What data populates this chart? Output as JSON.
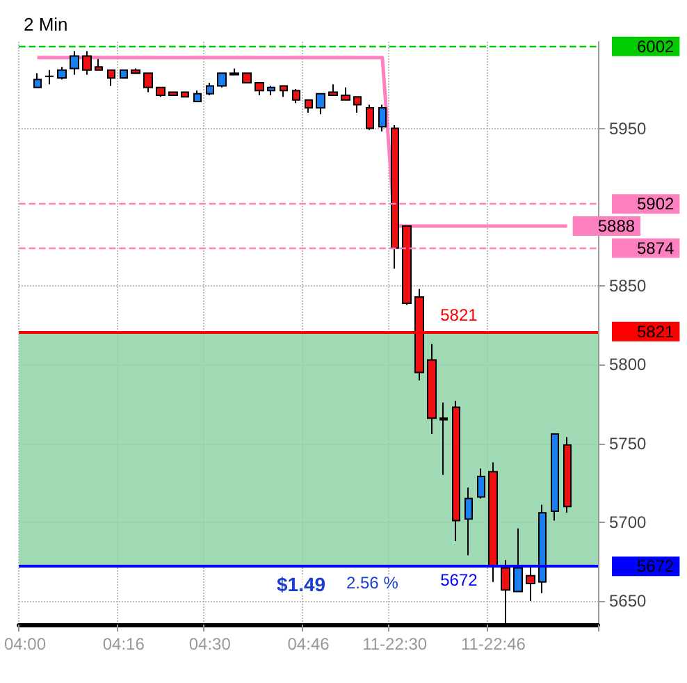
{
  "chart_data": {
    "type": "candlestick",
    "title": "2 Min",
    "categories": [
      "04:00",
      null,
      null,
      null,
      null,
      null,
      null,
      null,
      "04:16",
      null,
      null,
      null,
      null,
      null,
      null,
      "04:30",
      null,
      null,
      null,
      null,
      null,
      null,
      null,
      "04:46",
      null,
      null,
      null,
      null,
      null,
      null,
      "11-22:30",
      null,
      null,
      null,
      null,
      null,
      null,
      null,
      "11-22:46",
      null,
      null,
      null,
      null,
      null,
      null,
      null,
      null
    ],
    "ohlc": [
      null,
      [
        5976,
        5985,
        5976,
        5981
      ],
      [
        5983,
        5987,
        5978,
        5983
      ],
      [
        5982,
        5989,
        5981,
        5987
      ],
      [
        5988,
        5999,
        5984,
        5996
      ],
      [
        5996,
        5999,
        5984,
        5987
      ],
      [
        5989,
        5994,
        5987,
        5987
      ],
      [
        5987,
        5987,
        5977,
        5982
      ],
      [
        5982,
        5987,
        5982,
        5987
      ],
      [
        5987,
        5988,
        5985,
        5985
      ],
      [
        5985,
        5985,
        5973,
        5976
      ],
      [
        5976,
        5976,
        5970,
        5971
      ],
      [
        5973,
        5973,
        5971,
        5971
      ],
      [
        5973,
        5973,
        5970,
        5970
      ],
      [
        5967,
        5974,
        5967,
        5972
      ],
      [
        5972,
        5979,
        5971,
        5977
      ],
      [
        5977,
        5985,
        5976,
        5985
      ],
      [
        5984,
        5988,
        5984,
        5985
      ],
      [
        5985,
        5985,
        5979,
        5979
      ],
      [
        5979,
        5979,
        5971,
        5974
      ],
      [
        5974,
        5977,
        5971,
        5976
      ],
      [
        5977,
        5977,
        5970,
        5974
      ],
      [
        5974,
        5975,
        5966,
        5968
      ],
      [
        5968,
        5968,
        5960,
        5963
      ],
      [
        5963,
        5972,
        5959,
        5972
      ],
      [
        5973,
        5978,
        5971,
        5971
      ],
      [
        5971,
        5976,
        5968,
        5968
      ],
      [
        5970,
        5970,
        5960,
        5965
      ],
      [
        5963,
        5965,
        5949,
        5950
      ],
      [
        5951,
        5965,
        5948,
        5963
      ],
      [
        5950,
        5952,
        5861,
        5874
      ],
      [
        5888,
        5888,
        5838,
        5839
      ],
      [
        5843,
        5848,
        5790,
        5795
      ],
      [
        5803,
        5813,
        5756,
        5766
      ],
      [
        5766,
        5776,
        5730,
        5765
      ],
      [
        5773,
        5777,
        5688,
        5701
      ],
      [
        5702,
        5722,
        5679,
        5715
      ],
      [
        5716,
        5734,
        5715,
        5729
      ],
      [
        5732,
        5738,
        5662,
        5672
      ],
      [
        5671,
        5676,
        5636,
        5657
      ],
      [
        5656,
        5696,
        5656,
        5671
      ],
      [
        5666,
        5673,
        5650,
        5661
      ],
      [
        5662,
        5711,
        5655,
        5706
      ],
      [
        5707,
        5756,
        5701,
        5756
      ],
      [
        5749,
        5754,
        5706,
        5710
      ],
      null,
      null
    ],
    "colors": [
      null,
      "#1a7ff0",
      "#000000",
      "#1a7ff0",
      "#1a7ff0",
      "#ee1111",
      "#ee1111",
      "#ee1111",
      "#1a7ff0",
      "#ee1111",
      "#ee1111",
      "#ee1111",
      "#ee1111",
      "#ee1111",
      "#1a7ff0",
      "#1a7ff0",
      "#1a7ff0",
      "#1a7ff0",
      "#ee1111",
      "#ee1111",
      "#1a7ff0",
      "#ee1111",
      "#ee1111",
      "#ee1111",
      "#1a7ff0",
      "#ee1111",
      "#ee1111",
      "#ee1111",
      "#ee1111",
      "#1a7ff0",
      "#ee1111",
      "#ee1111",
      "#ee1111",
      "#ee1111",
      "#ee1111",
      "#ee1111",
      "#1a7ff0",
      "#1a7ff0",
      "#ee1111",
      "#ee1111",
      "#1a7ff0",
      "#ee1111",
      "#1a7ff0",
      "#1a7ff0",
      "#ee1111",
      null,
      null
    ],
    "series": [
      {
        "type": "line",
        "color": "#ff80c0",
        "values": [
          null,
          5995,
          5995,
          5995,
          5995,
          5995,
          5995,
          5995,
          5995,
          5995,
          5995,
          5995,
          5995,
          5995,
          5995,
          5995,
          5995,
          5995,
          5995,
          5995,
          5995,
          5995,
          5995,
          5995,
          5995,
          5995,
          5995,
          5995,
          5995,
          5995,
          5888,
          5888,
          5888,
          5888,
          5888,
          5888,
          5888,
          5888,
          5888,
          5888,
          5888,
          5888,
          5888,
          5888,
          5888,
          null,
          null
        ],
        "value_labels": [
          null,
          null,
          null,
          null,
          null,
          null,
          null,
          null,
          null,
          null,
          null,
          null,
          null,
          null,
          null,
          null,
          null,
          null,
          null,
          null,
          null,
          null,
          null,
          null,
          null,
          null,
          null,
          null,
          null,
          null,
          null,
          null,
          null,
          null,
          null,
          null,
          null,
          null,
          null,
          null,
          null,
          null,
          null,
          null,
          "5888",
          null,
          null
        ]
      }
    ],
    "ylim": [
      5635,
      6005
    ],
    "yticks": [
      5650,
      5700,
      5750,
      5800,
      5850,
      5950
    ],
    "grid": true,
    "ref_lines": [
      {
        "axis": "y",
        "value": 6002,
        "label": "6002",
        "color": "#00cc00",
        "line_style": "dashed"
      },
      {
        "axis": "y",
        "value": 5902,
        "label": "5902",
        "color": "#ff80c0",
        "line_style": "dashed"
      },
      {
        "axis": "y",
        "value": 5874,
        "label": "5874",
        "color": "#ff80c0",
        "line_style": "dashed"
      },
      {
        "axis": "y",
        "value": 5821,
        "label": "5821",
        "color": "#ff0000",
        "line_style": "solid"
      },
      {
        "axis": "y",
        "value": 5672,
        "label": "5672",
        "color": "#0000ff",
        "line_style": "solid"
      }
    ],
    "bands": [
      {
        "axis": "y",
        "from": 5672,
        "to": 5821,
        "color": "#8fd4a8"
      }
    ],
    "annotations": [
      {
        "text": "5821",
        "y": 5821
      },
      {
        "text": "5672",
        "y": 5672
      },
      "$1.49",
      "2.56 %"
    ]
  }
}
